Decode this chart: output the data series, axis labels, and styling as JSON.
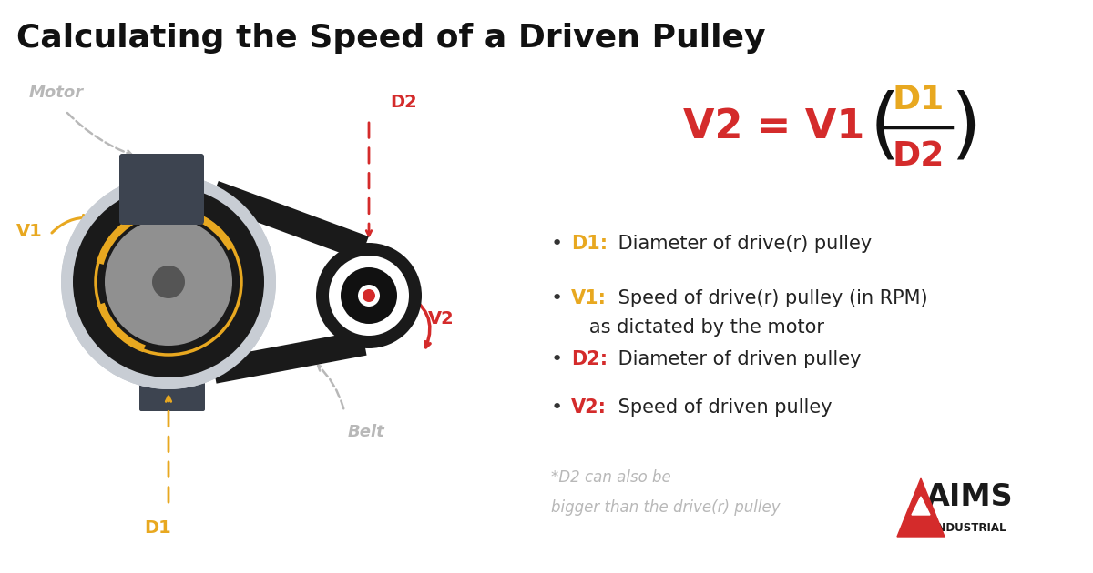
{
  "title": "Calculating the Speed of a Driven Pulley",
  "title_fontsize": 26,
  "bg_color": "#ffffff",
  "motor_label": "Motor",
  "belt_label": "Belt",
  "d1_label": "D1",
  "d2_label": "D2",
  "v1_label": "V1",
  "v2_label": "V2",
  "label_color_gray": "#b8b8b8",
  "label_color_gold": "#e8a820",
  "label_color_red": "#d42b2b",
  "dark_gray": "#3d4450",
  "light_gray": "#c8cdd4",
  "black": "#1a1a1a",
  "bullet_items": [
    {
      "bold": "D1:",
      "color": "#e8a820",
      "rest": " Diameter of drive(r) pulley"
    },
    {
      "bold": "V1:",
      "color": "#e8a820",
      "rest1": " Speed of drive(r) pulley (in RPM)",
      "rest2": "   as dictated by the motor"
    },
    {
      "bold": "D2:",
      "color": "#d42b2b",
      "rest": " Diameter of driven pulley"
    },
    {
      "bold": "V2:",
      "color": "#d42b2b",
      "rest": " Speed of driven pulley"
    }
  ],
  "footnote_line1": "*D2 can also be",
  "footnote_line2": "bigger than the drive(r) pulley",
  "footnote_color": "#b8b8b8"
}
